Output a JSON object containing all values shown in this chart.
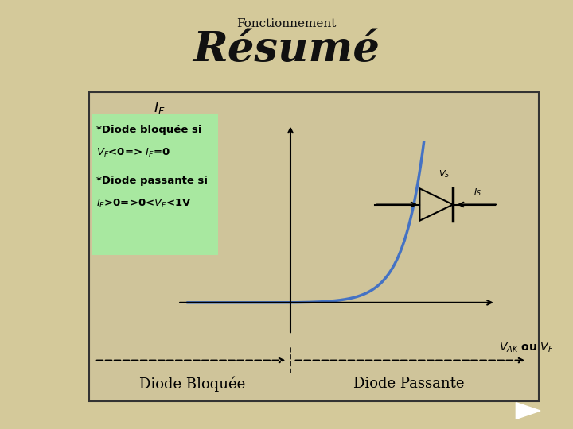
{
  "title_top": "Fonctionnement",
  "title_main": "Résumé",
  "bg_color": "#d4c99a",
  "box_bg": "#d4c48a",
  "panel_bg": "#b0e8a8",
  "curve_color": "#4472c4",
  "diode_bloquee": "Diode Bloquée",
  "diode_passante": "Diode Passante",
  "vs_label": "V_S",
  "is_label": "I_S",
  "xlim": [
    -0.55,
    1.0
  ],
  "ylim": [
    -0.18,
    1.0
  ],
  "nav_color": "#40b0a0"
}
